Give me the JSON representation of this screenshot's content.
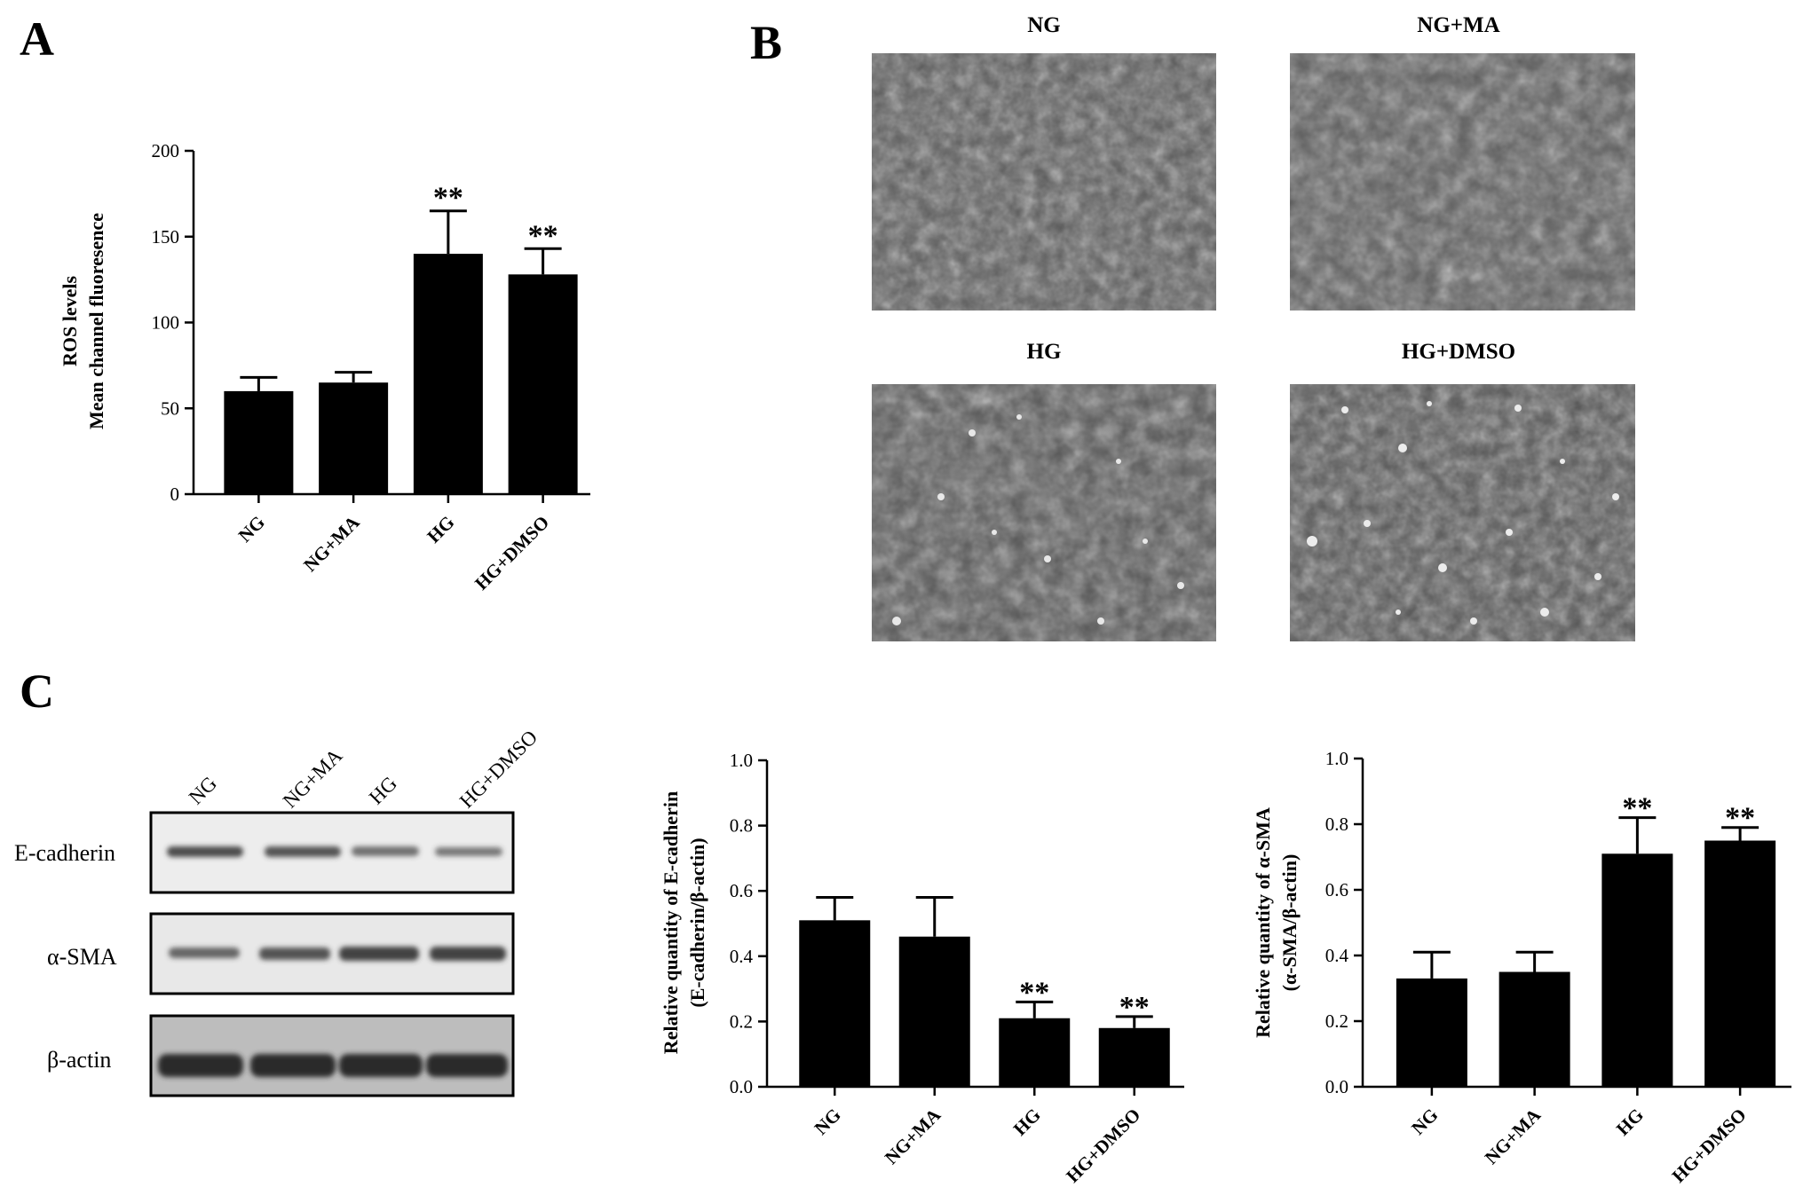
{
  "panels": {
    "a": "A",
    "b": "B",
    "c": "C"
  },
  "micrographs": [
    "NG",
    "NG+MA",
    "HG",
    "HG+DMSO"
  ],
  "blot": {
    "lanes": [
      "NG",
      "NG+MA",
      "HG",
      "HG+DMSO"
    ],
    "rows": [
      "E-cadherin",
      "α-SMA",
      "β-actin"
    ]
  },
  "chart_data": [
    {
      "type": "bar",
      "categories": [
        "NG",
        "NG+MA",
        "HG",
        "HG+DMSO"
      ],
      "values": [
        60,
        65,
        140,
        128
      ],
      "errors": [
        8,
        6,
        25,
        15
      ],
      "annotations": [
        "",
        "",
        "**",
        "**"
      ],
      "ylabel": [
        "ROS levels",
        "Mean channel fluoresence"
      ],
      "ylim": [
        0,
        200
      ],
      "yticks": [
        "0",
        "50",
        "100",
        "150",
        "200"
      ]
    },
    {
      "type": "bar",
      "categories": [
        "NG",
        "NG+MA",
        "HG",
        "HG+DMSO"
      ],
      "values": [
        0.51,
        0.46,
        0.21,
        0.18
      ],
      "errors": [
        0.07,
        0.12,
        0.05,
        0.035
      ],
      "annotations": [
        "",
        "",
        "**",
        "**"
      ],
      "ylabel": [
        "Relative quantity of E-cadherin",
        "(E-cadherin/β-actin)"
      ],
      "ylim": [
        0,
        1.0
      ],
      "yticks": [
        "0.0",
        "0.2",
        "0.4",
        "0.6",
        "0.8",
        "1.0"
      ]
    },
    {
      "type": "bar",
      "categories": [
        "NG",
        "NG+MA",
        "HG",
        "HG+DMSO"
      ],
      "values": [
        0.33,
        0.35,
        0.71,
        0.75
      ],
      "errors": [
        0.08,
        0.06,
        0.11,
        0.04
      ],
      "annotations": [
        "",
        "",
        "**",
        "**"
      ],
      "ylabel": [
        "Relative quantity of α-SMA",
        "(α-SMA/β-actin)"
      ],
      "ylim": [
        0,
        1.0
      ],
      "yticks": [
        "0.0",
        "0.2",
        "0.4",
        "0.6",
        "0.8",
        "1.0"
      ]
    }
  ]
}
